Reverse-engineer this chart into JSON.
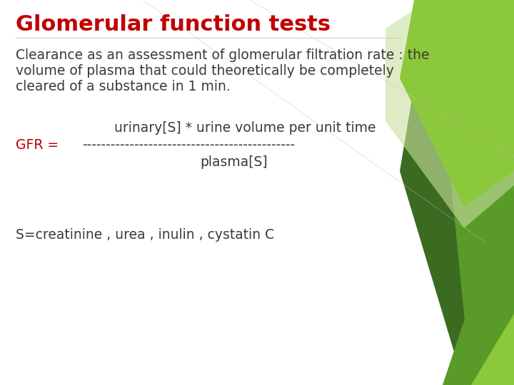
{
  "title": "Glomerular function tests",
  "title_color": "#c00000",
  "title_fontsize": 22,
  "bg_color": "#ffffff",
  "body_text_color": "#3a3a3a",
  "body_fontsize": 13.5,
  "gfr_color": "#c00000",
  "line1": "Clearance as an assessment of glomerular filtration rate : the",
  "line2": "volume of plasma that could theoretically be completely",
  "line3": "cleared of a substance in 1 min.",
  "numerator": "urinary[S] * urine volume per unit time",
  "dashes": "---------------------------------------------",
  "gfr_label": "GFR =",
  "denominator": "plasma[S]",
  "footer": "S=creatinine , urea , inulin , cystatin C",
  "dark_green": "#3a6b20",
  "mid_green": "#5a9a28",
  "light_green": "#8cc83c",
  "pale_green": "#c8e0a0"
}
